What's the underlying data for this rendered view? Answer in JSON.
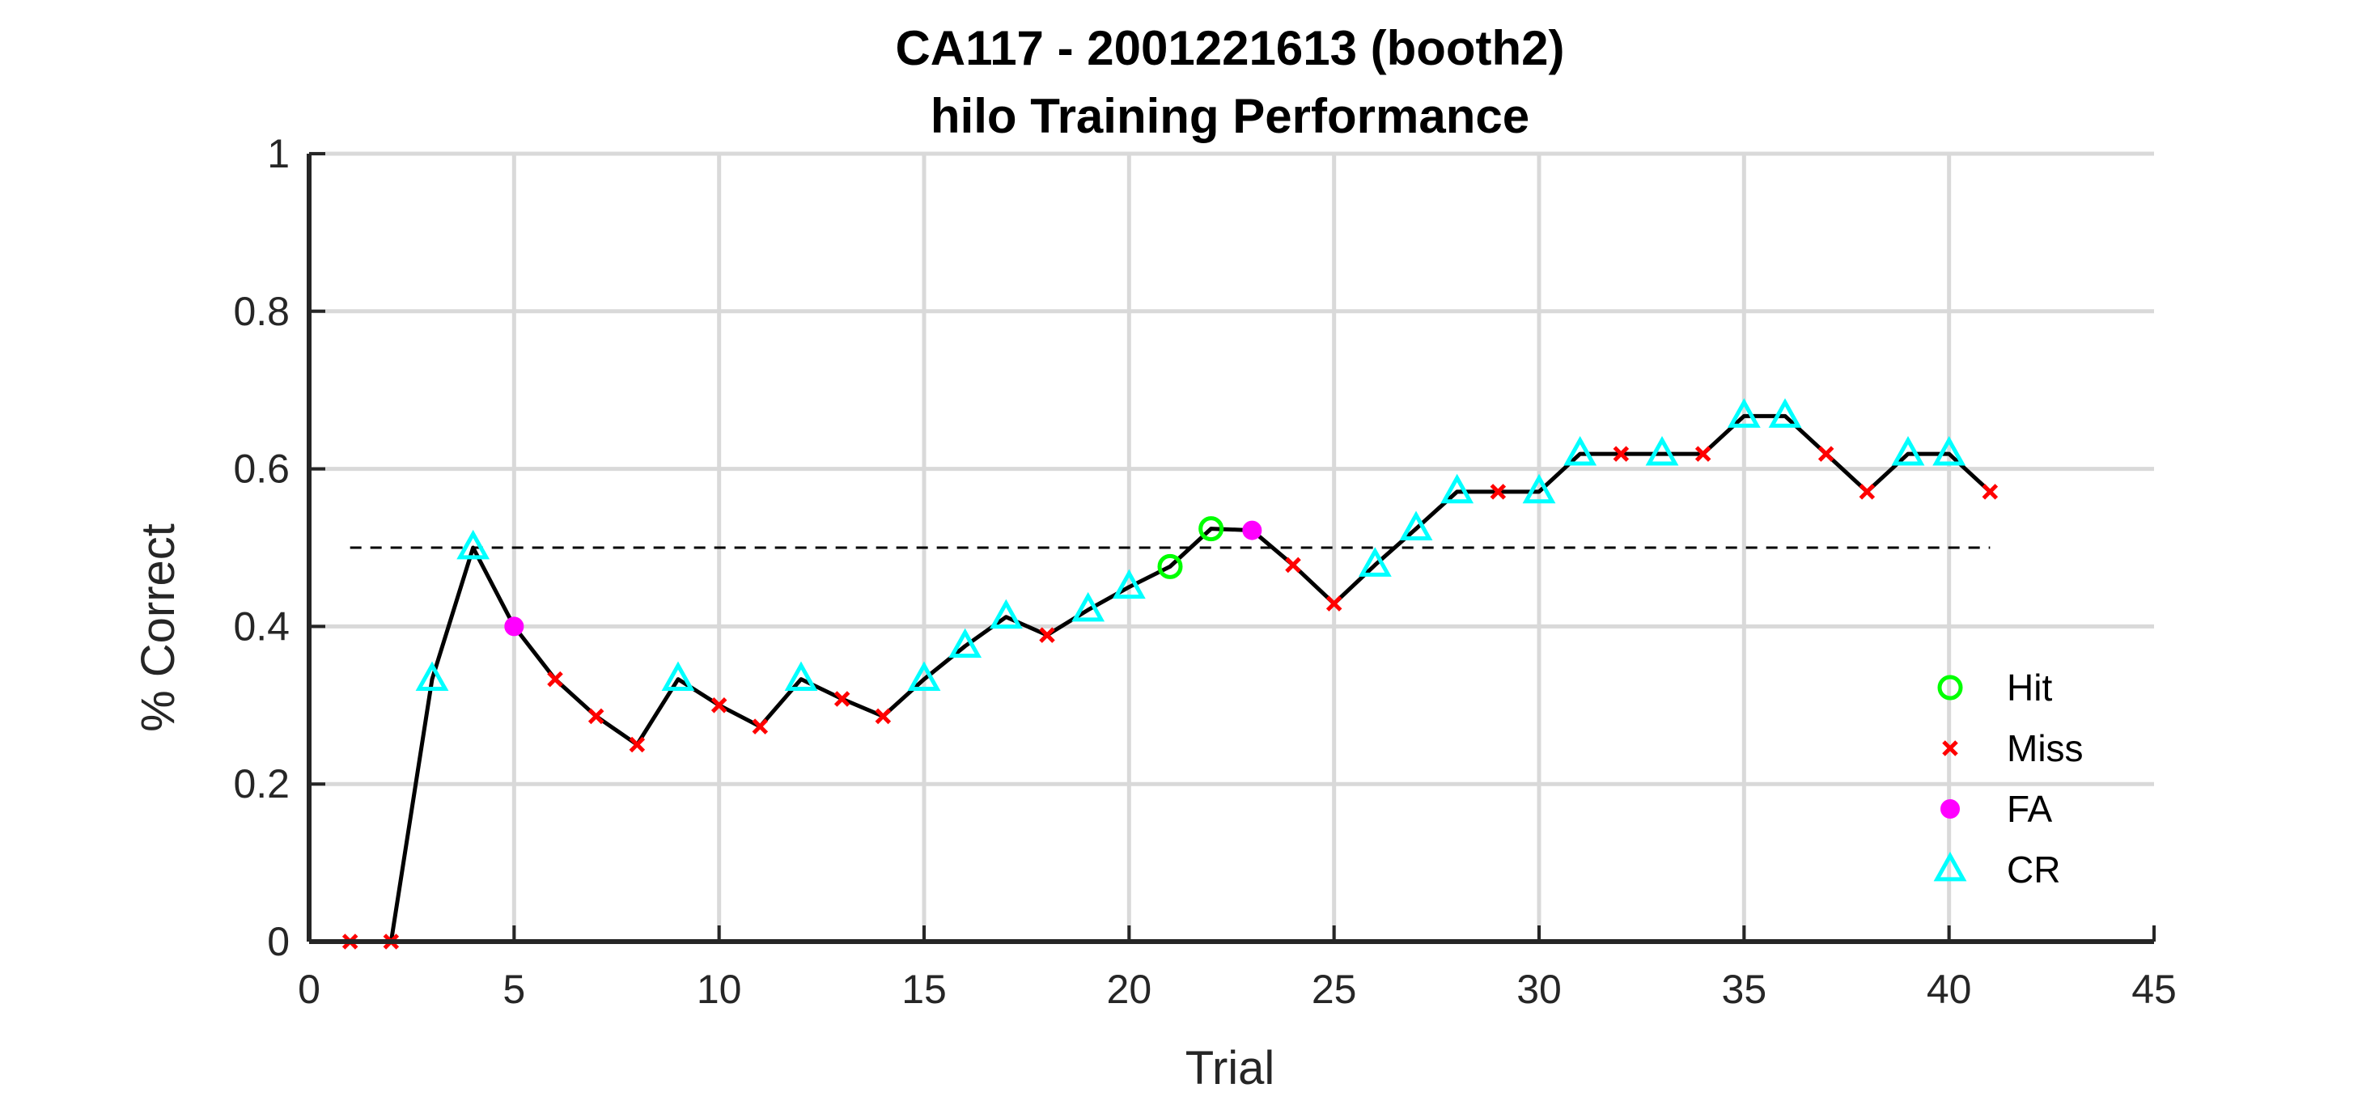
{
  "chart_data": {
    "type": "line",
    "title": "CA117 - 2001221613 (booth2)",
    "subtitle": "hilo Training Performance",
    "xlabel": "Trial",
    "ylabel": "% Correct",
    "xlim": [
      0,
      45
    ],
    "ylim": [
      0,
      1
    ],
    "xticks": [
      "0",
      "5",
      "10",
      "15",
      "20",
      "25",
      "30",
      "35",
      "40",
      "45"
    ],
    "yticks": [
      "0",
      "0.2",
      "0.4",
      "0.6",
      "0.8",
      "1"
    ],
    "grid": true,
    "chance_level": 0.5,
    "x": [
      1,
      2,
      3,
      4,
      5,
      6,
      7,
      8,
      9,
      10,
      11,
      12,
      13,
      14,
      15,
      16,
      17,
      18,
      19,
      20,
      21,
      22,
      23,
      24,
      25,
      26,
      27,
      28,
      29,
      30,
      31,
      32,
      33,
      34,
      35,
      36,
      37,
      38,
      39,
      40,
      41
    ],
    "y": [
      0,
      0,
      0.333,
      0.5,
      0.4,
      0.333,
      0.286,
      0.25,
      0.333,
      0.3,
      0.273,
      0.333,
      0.308,
      0.286,
      0.333,
      0.375,
      0.412,
      0.389,
      0.421,
      0.45,
      0.476,
      0.524,
      0.522,
      0.478,
      0.429,
      0.478,
      0.524,
      0.571,
      0.571,
      0.571,
      0.619,
      0.619,
      0.619,
      0.619,
      0.667,
      0.667,
      0.619,
      0.571,
      0.619,
      0.619,
      0.571
    ],
    "outcomes": [
      "Miss",
      "Miss",
      "CR",
      "CR",
      "FA",
      "Miss",
      "Miss",
      "Miss",
      "CR",
      "Miss",
      "Miss",
      "CR",
      "Miss",
      "Miss",
      "CR",
      "CR",
      "CR",
      "Miss",
      "CR",
      "CR",
      "Hit",
      "Hit",
      "FA",
      "Miss",
      "Miss",
      "CR",
      "CR",
      "CR",
      "Miss",
      "CR",
      "CR",
      "Miss",
      "CR",
      "Miss",
      "CR",
      "CR",
      "Miss",
      "Miss",
      "CR",
      "CR",
      "Miss"
    ],
    "legend": {
      "position": "bottom-right",
      "entries": [
        {
          "key": "Hit",
          "label": "Hit",
          "marker": "circle-open",
          "color": "#00ff00"
        },
        {
          "key": "Miss",
          "label": "Miss",
          "marker": "x",
          "color": "#ff0000"
        },
        {
          "key": "FA",
          "label": "FA",
          "marker": "circle-filled",
          "color": "#ff00ff"
        },
        {
          "key": "CR",
          "label": "CR",
          "marker": "triangle-open",
          "color": "#00ffff"
        }
      ]
    }
  }
}
